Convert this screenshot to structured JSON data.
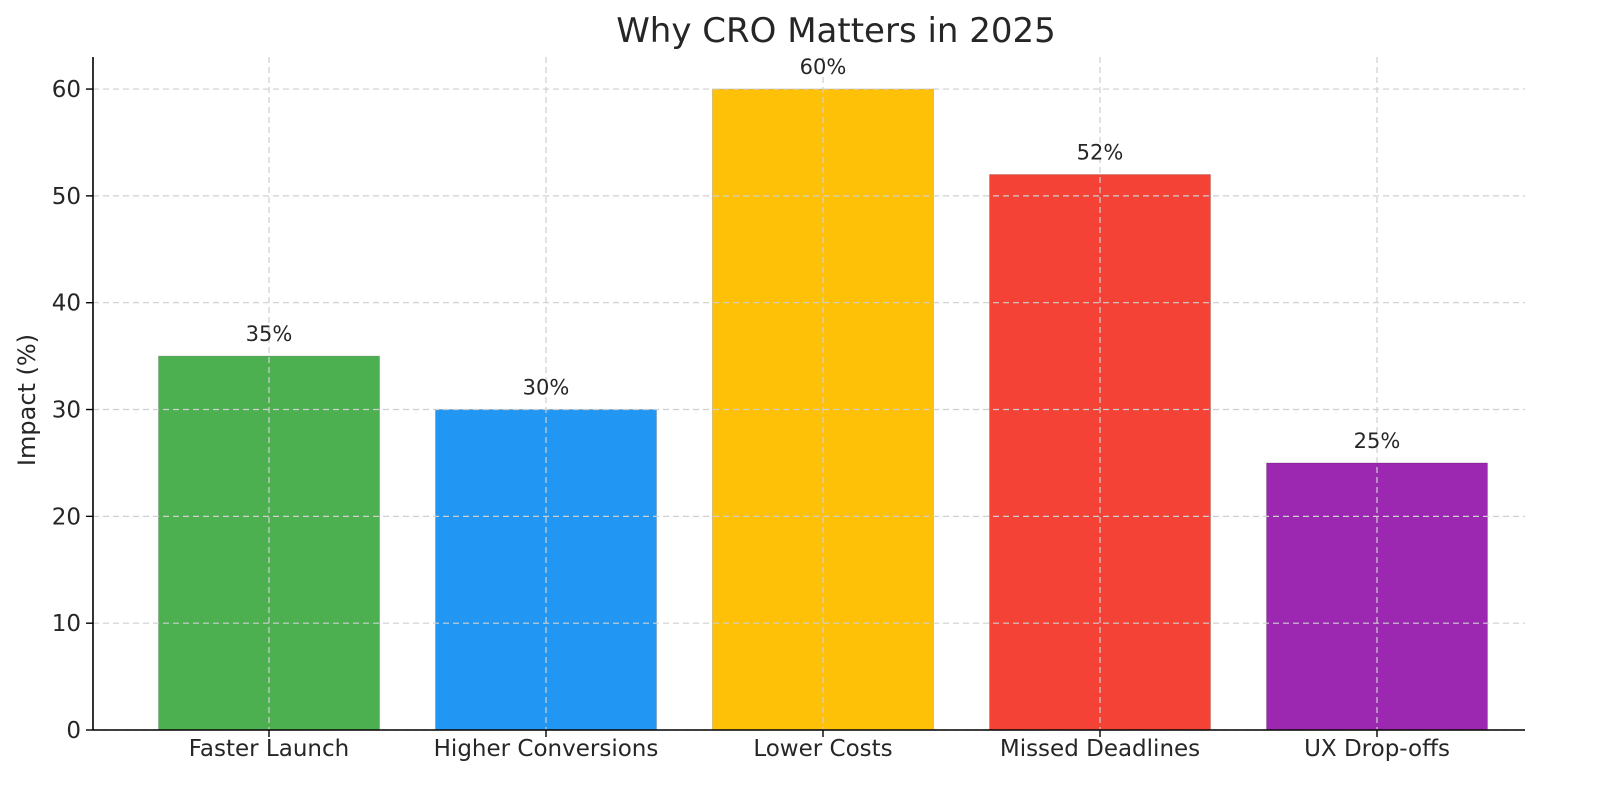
{
  "chart_data": {
    "type": "bar",
    "title": "Why CRO Matters in 2025",
    "xlabel": "",
    "ylabel": "Impact (%)",
    "ylim": [
      0,
      63
    ],
    "yticks": [
      0,
      10,
      20,
      30,
      40,
      50,
      60
    ],
    "grid": true,
    "categories": [
      "Faster Launch",
      "Higher Conversions",
      "Lower Costs",
      "Missed Deadlines",
      "UX Drop-offs"
    ],
    "values": [
      35,
      30,
      60,
      52,
      25
    ],
    "value_labels": [
      "35%",
      "30%",
      "60%",
      "52%",
      "25%"
    ],
    "colors": [
      "#4caf50",
      "#2196f3",
      "#ffc107",
      "#f44336",
      "#9c27b0"
    ]
  }
}
